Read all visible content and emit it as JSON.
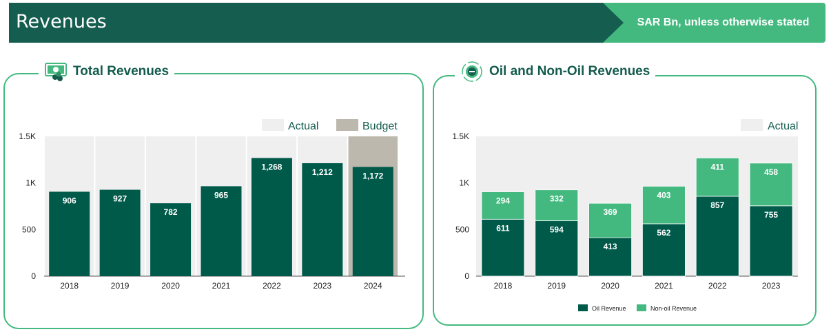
{
  "header": {
    "title": "Revenues",
    "note": "SAR Bn, unless otherwise stated"
  },
  "colors": {
    "banner_dark": "#155d4f",
    "banner_light": "#43b97f",
    "actual_bar": "#005a4a",
    "budget_bar": "#bdb8ae",
    "actual_band": "#f0eff0",
    "nonoil_bar": "#43b97f",
    "panel_border": "#43b97f"
  },
  "panels": {
    "left": {
      "title": "Total Revenues",
      "icon": "cash-icon"
    },
    "right": {
      "title": "Oil and Non-Oil Revenues",
      "icon": "oil-drop-cycle-icon"
    }
  },
  "chart_data": [
    {
      "type": "bar",
      "title": "Total Revenues",
      "categories": [
        "2018",
        "2019",
        "2020",
        "2021",
        "2022",
        "2023",
        "2024"
      ],
      "values": [
        906,
        927,
        782,
        965,
        1268,
        1212,
        1172
      ],
      "data_labels": [
        "906",
        "927",
        "782",
        "965",
        "1,268",
        "1,212",
        "1,172"
      ],
      "status": [
        "actual",
        "actual",
        "actual",
        "actual",
        "actual",
        "actual",
        "budget"
      ],
      "legend": [
        "Actual",
        "Budget"
      ],
      "legend_position": "top-right",
      "y_ticks": [
        "0",
        "500",
        "1K",
        "1.5K"
      ],
      "ylim": [
        0,
        1500
      ],
      "grid": false
    },
    {
      "type": "bar",
      "stacked": true,
      "title": "Oil and Non-Oil Revenues",
      "categories": [
        "2018",
        "2019",
        "2020",
        "2021",
        "2022",
        "2023"
      ],
      "series": [
        {
          "name": "Oil Revenue",
          "values": [
            611,
            594,
            413,
            562,
            857,
            755
          ]
        },
        {
          "name": "Non-oil Revenue",
          "values": [
            294,
            332,
            369,
            403,
            411,
            458
          ]
        }
      ],
      "band_legend": [
        "Actual"
      ],
      "legend_position": "bottom",
      "y_ticks": [
        "0",
        "500",
        "1K",
        "1.5K"
      ],
      "ylim": [
        0,
        1500
      ],
      "grid": false
    }
  ]
}
